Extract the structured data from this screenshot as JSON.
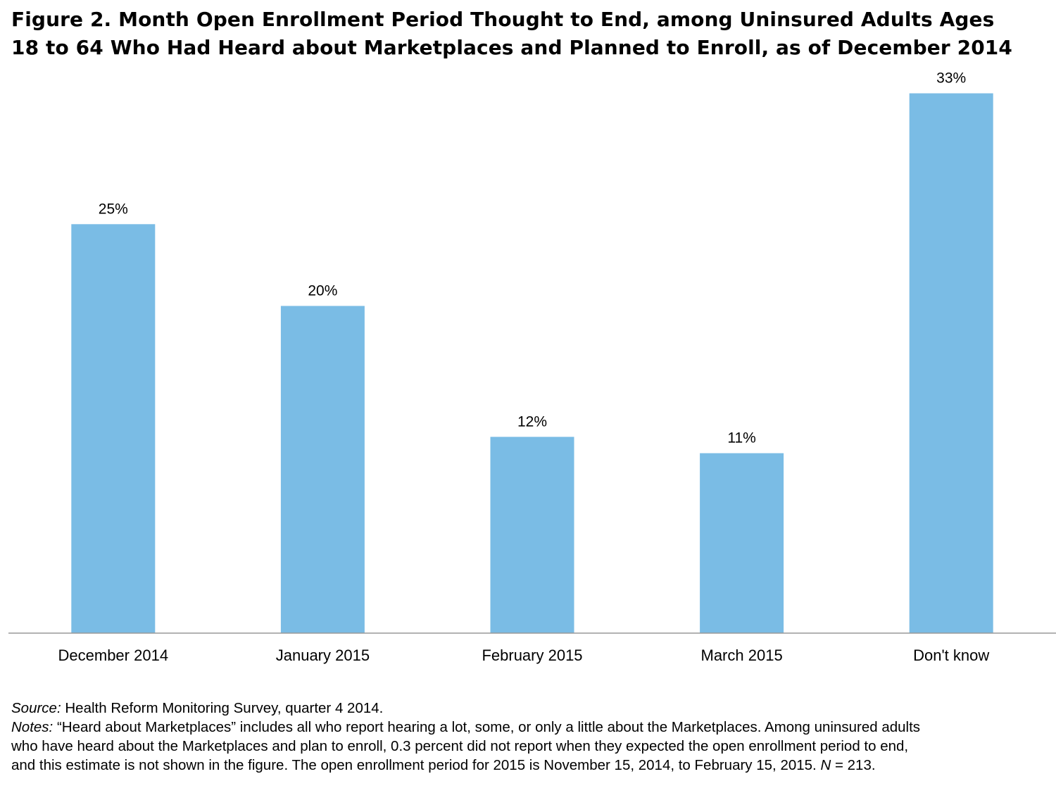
{
  "title_line1": "Figure 2. Month Open Enrollment Period Thought to End, among Uninsured Adults Ages",
  "title_line2": "18 to 64 Who Had Heard about Marketplaces and Planned to Enroll, as of December 2014",
  "chart_data": {
    "type": "bar",
    "title": "Figure 2. Month Open Enrollment Period Thought to End, among Uninsured Adults Ages 18 to 64 Who Had Heard about Marketplaces and Planned to Enroll, as of December 2014",
    "categories": [
      "December 2014",
      "January 2015",
      "February 2015",
      "March 2015",
      "Don't know"
    ],
    "values": [
      25,
      20,
      12,
      11,
      33
    ],
    "data_labels": [
      "25%",
      "20%",
      "12%",
      "11%",
      "33%"
    ],
    "xlabel": "",
    "ylabel": "",
    "ylim": [
      0,
      35
    ],
    "grid": false,
    "legend": "none",
    "bar_color": "#7ABCE5",
    "axis_color": "#999999"
  },
  "source": {
    "label": "Source:",
    "text": "Health Reform Monitoring Survey, quarter 4 2014."
  },
  "notes": {
    "label": "Notes:",
    "line1": "“Heard about Marketplaces” includes all who report hearing a lot, some, or only a little about the Marketplaces. Among uninsured adults",
    "line2": "who have heard about the Marketplaces and plan to enroll, 0.3 percent did not report when they expected the open enrollment period to end,",
    "line3": "and this estimate is not shown in the figure. The open enrollment period for 2015 is November 15, 2014, to February 15, 2015.",
    "n_label": "N",
    "n_text": "= 213."
  }
}
